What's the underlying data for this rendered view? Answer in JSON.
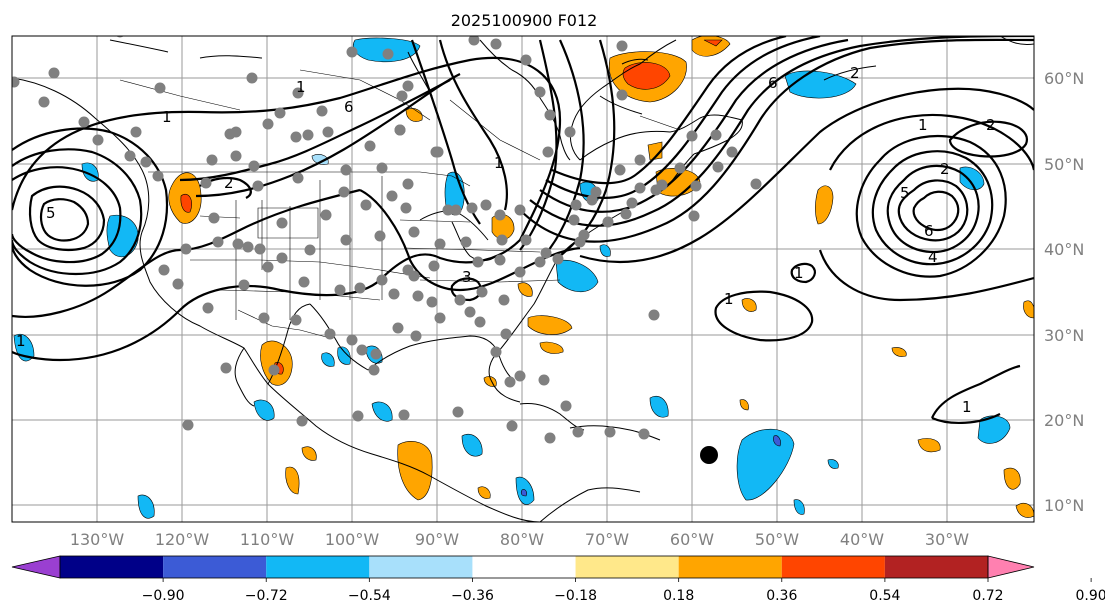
{
  "title": "2025100900 F012",
  "map": {
    "lon_labels": [
      "130°W",
      "120°W",
      "110°W",
      "100°W",
      "90°W",
      "80°W",
      "70°W",
      "60°W",
      "50°W",
      "40°W",
      "30°W"
    ],
    "lat_labels": [
      "60°N",
      "50°N",
      "40°N",
      "30°N",
      "20°N",
      "10°N"
    ],
    "contour_labels": [
      "1",
      "2",
      "5",
      "1",
      "6",
      "6",
      "2",
      "3",
      "1",
      "1",
      "2",
      "2",
      "5",
      "6",
      "4",
      "1",
      "1",
      "1",
      "1"
    ],
    "marker": {
      "name": "black-dot",
      "color": "#000000"
    }
  },
  "colorbar": {
    "ticks": [
      "−0.90",
      "−0.72",
      "−0.54",
      "−0.36",
      "−0.18",
      "0.18",
      "0.36",
      "0.54",
      "0.72",
      "0.90"
    ],
    "colors": [
      "#9a3fd1",
      "#000088",
      "#3c5bd6",
      "#12b8f5",
      "#a8e0fb",
      "#ffffff",
      "#ffe88a",
      "#ffa500",
      "#ff4500",
      "#b22222",
      "#ff80b0"
    ]
  }
}
